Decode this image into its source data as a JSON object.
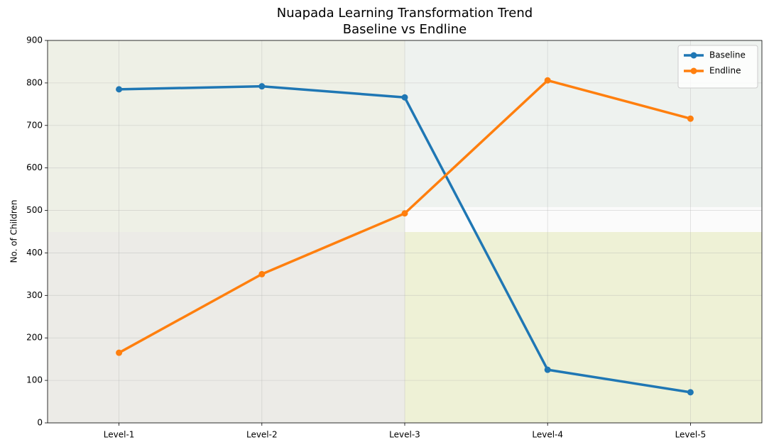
{
  "chart_data": {
    "type": "line",
    "title": "Nuapada Learning Transformation Trend",
    "subtitle": "Baseline vs Endline",
    "y_label": "No. of Children",
    "categories": [
      "Level-1",
      "Level-2",
      "Level-3",
      "Level-4",
      "Level-5"
    ],
    "series": [
      {
        "name": "Baseline",
        "color": "#1f77b4",
        "values": [
          785,
          792,
          766,
          125,
          72
        ]
      },
      {
        "name": "Endline",
        "color": "#ff7f0e",
        "values": [
          165,
          350,
          493,
          806,
          716
        ]
      }
    ],
    "ylim": [
      0,
      900
    ],
    "yticks": [
      0,
      100,
      200,
      300,
      400,
      500,
      600,
      700,
      800,
      900
    ],
    "grid": true,
    "legend": "upper right"
  }
}
